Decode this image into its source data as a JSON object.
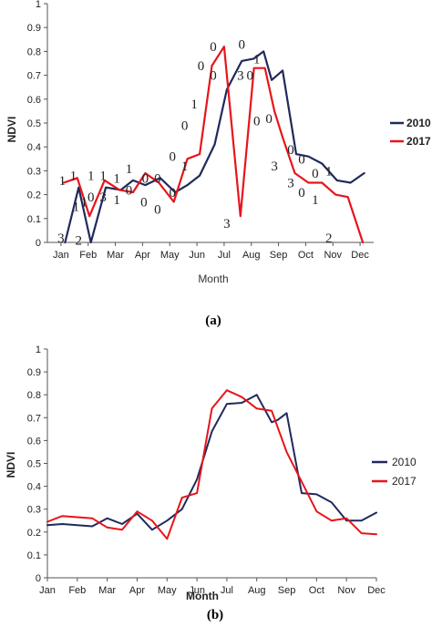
{
  "colors": {
    "series_2010": "#1f2a5c",
    "series_2017": "#e8141b"
  },
  "chart_data": [
    {
      "type": "line",
      "panel_label": "(a)",
      "xlabel": "Month",
      "ylabel": "NDVI",
      "ylim": [
        0,
        1
      ],
      "yticks": [
        "0",
        "0.1",
        "0.2",
        "0.3",
        "0.4",
        "0.5",
        "0.6",
        "0.7",
        "0.8",
        "0.9",
        "1"
      ],
      "categories": [
        "Jan",
        "Feb",
        "Mar",
        "Apr",
        "May",
        "Jun",
        "Jul",
        "Aug",
        "Sep",
        "Oct",
        "Nov",
        "Dec"
      ],
      "grid": false,
      "legend": "right",
      "series": [
        {
          "name": "2010",
          "color": "#1f2a5c",
          "x": [
            0.15,
            0.65,
            1.1,
            1.65,
            2.2,
            2.65,
            3.1,
            3.65,
            4.2,
            4.65,
            5.1,
            5.65,
            6.1,
            6.65,
            7.1,
            7.45,
            7.75,
            8.15,
            8.65,
            9.1,
            9.6,
            10.15,
            10.65,
            11.15
          ],
          "values": [
            0.0,
            0.23,
            0.0,
            0.23,
            0.22,
            0.26,
            0.24,
            0.27,
            0.21,
            0.24,
            0.28,
            0.41,
            0.64,
            0.76,
            0.77,
            0.8,
            0.68,
            0.72,
            0.37,
            0.36,
            0.33,
            0.26,
            0.25,
            0.29
          ]
        },
        {
          "name": "2017",
          "color": "#e8141b",
          "x": [
            0.1,
            0.6,
            1.05,
            1.6,
            2.15,
            2.65,
            3.1,
            3.6,
            4.15,
            4.65,
            5.1,
            5.55,
            6.0,
            6.6,
            7.1,
            7.5,
            7.85,
            8.15,
            8.6,
            9.1,
            9.6,
            10.1,
            10.55,
            11.1
          ],
          "values": [
            0.25,
            0.27,
            0.11,
            0.26,
            0.22,
            0.21,
            0.29,
            0.25,
            0.17,
            0.35,
            0.37,
            0.74,
            0.82,
            0.11,
            0.73,
            0.73,
            0.55,
            0.44,
            0.29,
            0.25,
            0.25,
            0.2,
            0.19,
            0.0
          ]
        }
      ],
      "annotations": [
        {
          "text": "1",
          "x": 0.05,
          "y": 0.26
        },
        {
          "text": "3",
          "x": 0.0,
          "y": 0.02
        },
        {
          "text": "1",
          "x": 0.45,
          "y": 0.28
        },
        {
          "text": "1",
          "x": 0.55,
          "y": 0.15
        },
        {
          "text": "1",
          "x": 0.85,
          "y": 0.17
        },
        {
          "text": "2",
          "x": 0.65,
          "y": 0.01
        },
        {
          "text": "1",
          "x": 1.1,
          "y": 0.28
        },
        {
          "text": "0",
          "x": 1.1,
          "y": 0.19
        },
        {
          "text": "1",
          "x": 1.55,
          "y": 0.28
        },
        {
          "text": "3",
          "x": 1.55,
          "y": 0.19
        },
        {
          "text": "1",
          "x": 2.05,
          "y": 0.27
        },
        {
          "text": "1",
          "x": 2.05,
          "y": 0.18
        },
        {
          "text": "1",
          "x": 2.5,
          "y": 0.31
        },
        {
          "text": "0",
          "x": 2.5,
          "y": 0.22
        },
        {
          "text": "0",
          "x": 3.1,
          "y": 0.27
        },
        {
          "text": "0",
          "x": 3.05,
          "y": 0.17
        },
        {
          "text": "0",
          "x": 3.55,
          "y": 0.27
        },
        {
          "text": "0",
          "x": 3.55,
          "y": 0.14
        },
        {
          "text": "0",
          "x": 4.1,
          "y": 0.36
        },
        {
          "text": "0",
          "x": 4.1,
          "y": 0.21
        },
        {
          "text": "0",
          "x": 4.55,
          "y": 0.49
        },
        {
          "text": "1",
          "x": 4.55,
          "y": 0.32
        },
        {
          "text": "1",
          "x": 4.9,
          "y": 0.58
        },
        {
          "text": "0",
          "x": 5.15,
          "y": 0.74
        },
        {
          "text": "0",
          "x": 5.6,
          "y": 0.82
        },
        {
          "text": "0",
          "x": 5.6,
          "y": 0.7
        },
        {
          "text": "3",
          "x": 6.1,
          "y": 0.08
        },
        {
          "text": "0",
          "x": 6.65,
          "y": 0.83
        },
        {
          "text": "3",
          "x": 6.6,
          "y": 0.7
        },
        {
          "text": "0",
          "x": 6.95,
          "y": 0.7
        },
        {
          "text": "1",
          "x": 7.2,
          "y": 0.77
        },
        {
          "text": "0",
          "x": 7.2,
          "y": 0.51
        },
        {
          "text": "0",
          "x": 7.65,
          "y": 0.52
        },
        {
          "text": "3",
          "x": 7.85,
          "y": 0.32
        },
        {
          "text": "0",
          "x": 8.45,
          "y": 0.39
        },
        {
          "text": "3",
          "x": 8.45,
          "y": 0.25
        },
        {
          "text": "0",
          "x": 8.85,
          "y": 0.35
        },
        {
          "text": "0",
          "x": 8.85,
          "y": 0.21
        },
        {
          "text": "0",
          "x": 9.35,
          "y": 0.29
        },
        {
          "text": "1",
          "x": 9.35,
          "y": 0.18
        },
        {
          "text": "1",
          "x": 9.85,
          "y": 0.3
        },
        {
          "text": "2",
          "x": 9.85,
          "y": 0.02
        }
      ]
    },
    {
      "type": "line",
      "panel_label": "(b)",
      "xlabel": "Month",
      "ylabel": "NDVI",
      "ylim": [
        0,
        1
      ],
      "yticks": [
        "0",
        "0.1",
        "0.2",
        "0.3",
        "0.4",
        "0.5",
        "0.6",
        "0.7",
        "0.8",
        "0.9",
        "1"
      ],
      "categories": [
        "Jan",
        "Feb",
        "Mar",
        "Apr",
        "May",
        "Jun",
        "Jul",
        "Aug",
        "Sep",
        "Oct",
        "Nov",
        "Dec"
      ],
      "grid": false,
      "legend": "right",
      "series": [
        {
          "name": "2010",
          "color": "#1f2a5c",
          "x": [
            0.0,
            0.5,
            1.0,
            1.5,
            2.0,
            2.5,
            3.0,
            3.5,
            4.0,
            4.5,
            5.0,
            5.5,
            6.0,
            6.5,
            7.0,
            7.5,
            7.7,
            8.0,
            8.5,
            9.0,
            9.5,
            10.0,
            10.5,
            11.0
          ],
          "values": [
            0.23,
            0.235,
            0.23,
            0.225,
            0.26,
            0.235,
            0.28,
            0.21,
            0.25,
            0.3,
            0.43,
            0.64,
            0.76,
            0.765,
            0.8,
            0.68,
            0.69,
            0.72,
            0.37,
            0.365,
            0.33,
            0.25,
            0.25,
            0.285
          ]
        },
        {
          "name": "2017",
          "color": "#e8141b",
          "x": [
            0.0,
            0.5,
            1.0,
            1.5,
            2.0,
            2.5,
            3.0,
            3.5,
            4.0,
            4.5,
            5.0,
            5.5,
            6.0,
            6.5,
            7.0,
            7.5,
            8.0,
            8.5,
            9.0,
            9.5,
            10.0,
            10.5,
            11.0
          ],
          "values": [
            0.245,
            0.27,
            0.265,
            0.26,
            0.22,
            0.21,
            0.29,
            0.25,
            0.17,
            0.35,
            0.37,
            0.74,
            0.82,
            0.79,
            0.74,
            0.73,
            0.55,
            0.42,
            0.29,
            0.25,
            0.26,
            0.195,
            0.19
          ]
        }
      ]
    }
  ]
}
